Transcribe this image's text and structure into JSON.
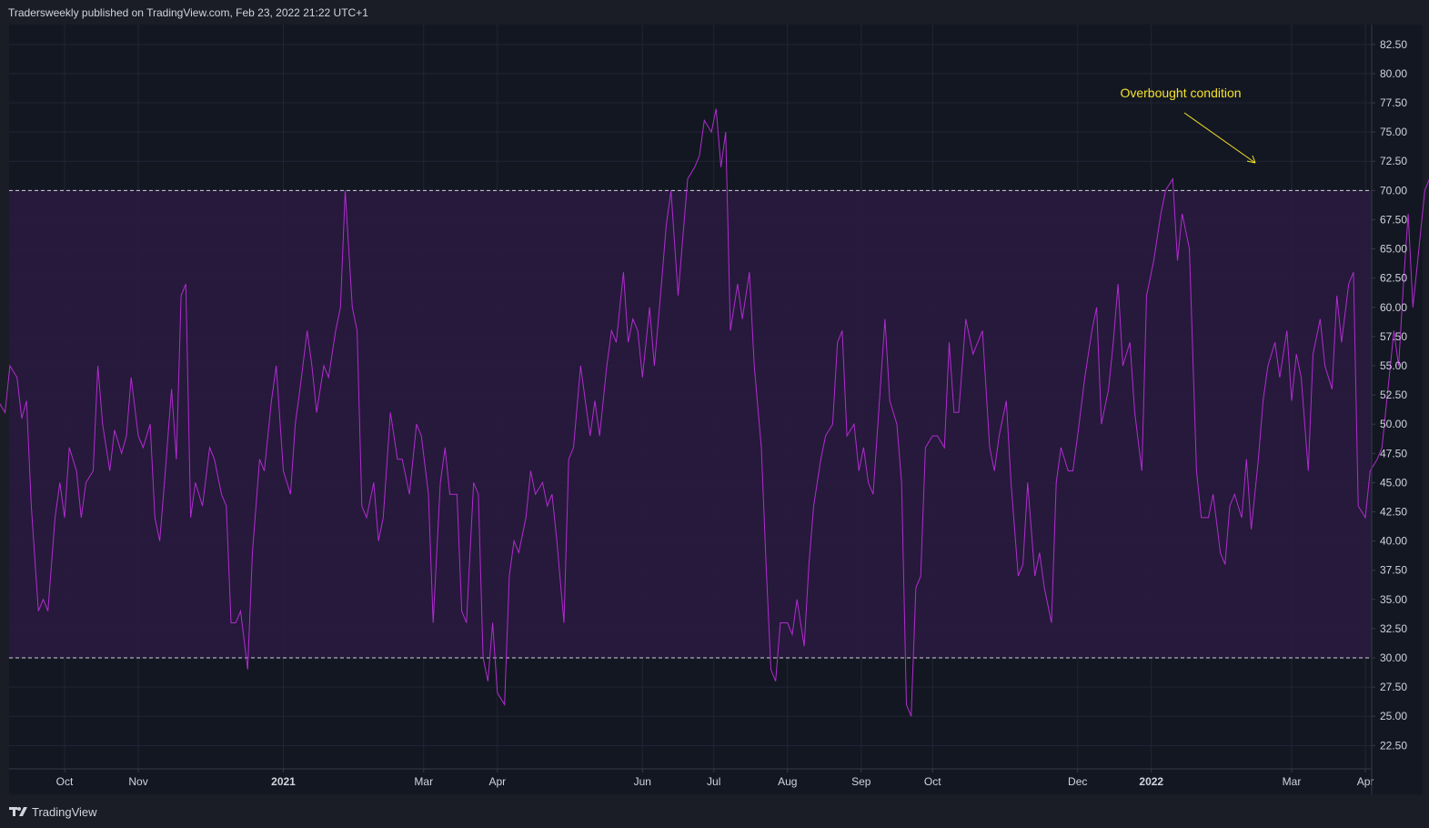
{
  "header": {
    "published_text": "Tradersweekly published on TradingView.com, Feb 23, 2022 21:22 UTC+1"
  },
  "footer": {
    "brand": "TradingView"
  },
  "colors": {
    "background": "#131722",
    "band_fill": "#2a1a3f",
    "line": "#b22bd1",
    "threshold_line": "#d1d4dc",
    "annotation": "#f4e22b",
    "axis_text": "#d1d4dc",
    "grid": "#222634"
  },
  "chart_data": {
    "type": "line",
    "ylim": [
      20.5,
      84.2
    ],
    "y_ticks": [
      "82.50",
      "80.00",
      "77.50",
      "75.00",
      "72.50",
      "70.00",
      "67.50",
      "65.00",
      "62.50",
      "60.00",
      "57.50",
      "55.00",
      "52.50",
      "50.00",
      "47.50",
      "45.00",
      "42.50",
      "40.00",
      "37.50",
      "35.00",
      "32.50",
      "30.00",
      "27.50",
      "25.00",
      "22.50"
    ],
    "x_range": [
      "2020-09-01",
      "2022-04-03"
    ],
    "x_ticks": [
      {
        "label": "Oct",
        "date": "2020-10-01",
        "bold": false
      },
      {
        "label": "Nov",
        "date": "2020-11-01",
        "bold": false
      },
      {
        "label": "2021",
        "date": "2021-01-01",
        "bold": true
      },
      {
        "label": "Mar",
        "date": "2021-03-01",
        "bold": false
      },
      {
        "label": "Apr",
        "date": "2021-04-01",
        "bold": false
      },
      {
        "label": "Jun",
        "date": "2021-06-01",
        "bold": false
      },
      {
        "label": "Jul",
        "date": "2021-07-01",
        "bold": false
      },
      {
        "label": "Aug",
        "date": "2021-08-01",
        "bold": false
      },
      {
        "label": "Sep",
        "date": "2021-09-01",
        "bold": false
      },
      {
        "label": "Oct",
        "date": "2021-10-01",
        "bold": false
      },
      {
        "label": "Dec",
        "date": "2021-12-01",
        "bold": false
      },
      {
        "label": "2022",
        "date": "2022-01-01",
        "bold": true
      },
      {
        "label": "Mar",
        "date": "2022-03-01",
        "bold": false
      },
      {
        "label": "Apr",
        "date": "2022-04-01",
        "bold": false
      }
    ],
    "upper_band": 70,
    "lower_band": 30,
    "series": [
      {
        "points": [
          [
            "2020-09-01",
            49.5
          ],
          [
            "2020-09-03",
            52
          ],
          [
            "2020-09-06",
            51
          ],
          [
            "2020-09-08",
            55
          ],
          [
            "2020-09-11",
            54
          ],
          [
            "2020-09-13",
            50.5
          ],
          [
            "2020-09-15",
            52
          ],
          [
            "2020-09-17",
            43
          ],
          [
            "2020-09-20",
            34
          ],
          [
            "2020-09-22",
            35
          ],
          [
            "2020-09-24",
            34
          ],
          [
            "2020-09-27",
            42
          ],
          [
            "2020-09-29",
            45
          ],
          [
            "2020-10-01",
            42
          ],
          [
            "2020-10-03",
            48
          ],
          [
            "2020-10-06",
            46
          ],
          [
            "2020-10-08",
            42
          ],
          [
            "2020-10-10",
            45
          ],
          [
            "2020-10-13",
            46
          ],
          [
            "2020-10-15",
            55
          ],
          [
            "2020-10-17",
            50
          ],
          [
            "2020-10-20",
            46
          ],
          [
            "2020-10-22",
            49.5
          ],
          [
            "2020-10-25",
            47.5
          ],
          [
            "2020-10-27",
            49
          ],
          [
            "2020-10-29",
            54
          ],
          [
            "2020-11-01",
            49
          ],
          [
            "2020-11-03",
            48
          ],
          [
            "2020-11-06",
            50
          ],
          [
            "2020-11-08",
            42
          ],
          [
            "2020-11-10",
            40
          ],
          [
            "2020-11-12",
            45
          ],
          [
            "2020-11-15",
            53
          ],
          [
            "2020-11-17",
            47
          ],
          [
            "2020-11-19",
            61
          ],
          [
            "2020-11-21",
            62
          ],
          [
            "2020-11-23",
            42
          ],
          [
            "2020-11-25",
            45
          ],
          [
            "2020-11-28",
            43
          ],
          [
            "2020-12-01",
            48
          ],
          [
            "2020-12-03",
            47
          ],
          [
            "2020-12-06",
            44
          ],
          [
            "2020-12-08",
            43
          ],
          [
            "2020-12-10",
            33
          ],
          [
            "2020-12-12",
            33
          ],
          [
            "2020-12-14",
            34
          ],
          [
            "2020-12-17",
            29
          ],
          [
            "2020-12-19",
            39
          ],
          [
            "2020-12-22",
            47
          ],
          [
            "2020-12-24",
            46
          ],
          [
            "2020-12-27",
            52
          ],
          [
            "2020-12-29",
            55
          ],
          [
            "2021-01-01",
            46
          ],
          [
            "2021-01-04",
            44
          ],
          [
            "2021-01-06",
            50
          ],
          [
            "2021-01-08",
            53
          ],
          [
            "2021-01-11",
            58
          ],
          [
            "2021-01-13",
            55
          ],
          [
            "2021-01-15",
            51
          ],
          [
            "2021-01-18",
            55
          ],
          [
            "2021-01-20",
            54
          ],
          [
            "2021-01-23",
            58
          ],
          [
            "2021-01-25",
            60
          ],
          [
            "2021-01-27",
            70
          ],
          [
            "2021-01-30",
            60
          ],
          [
            "2021-02-01",
            58
          ],
          [
            "2021-02-03",
            43
          ],
          [
            "2021-02-05",
            42
          ],
          [
            "2021-02-08",
            45
          ],
          [
            "2021-02-10",
            40
          ],
          [
            "2021-02-12",
            42
          ],
          [
            "2021-02-15",
            51
          ],
          [
            "2021-02-18",
            47
          ],
          [
            "2021-02-20",
            47
          ],
          [
            "2021-02-23",
            44
          ],
          [
            "2021-02-26",
            50
          ],
          [
            "2021-02-28",
            49
          ],
          [
            "2021-03-03",
            44
          ],
          [
            "2021-03-05",
            33
          ],
          [
            "2021-03-08",
            45
          ],
          [
            "2021-03-10",
            48
          ],
          [
            "2021-03-12",
            44
          ],
          [
            "2021-03-15",
            44
          ],
          [
            "2021-03-17",
            34
          ],
          [
            "2021-03-19",
            33
          ],
          [
            "2021-03-22",
            45
          ],
          [
            "2021-03-24",
            44
          ],
          [
            "2021-03-26",
            30
          ],
          [
            "2021-03-28",
            28
          ],
          [
            "2021-03-30",
            33
          ],
          [
            "2021-04-01",
            27
          ],
          [
            "2021-04-04",
            26
          ],
          [
            "2021-04-06",
            37
          ],
          [
            "2021-04-08",
            40
          ],
          [
            "2021-04-10",
            39
          ],
          [
            "2021-04-13",
            42
          ],
          [
            "2021-04-15",
            46
          ],
          [
            "2021-04-17",
            44
          ],
          [
            "2021-04-20",
            45
          ],
          [
            "2021-04-22",
            43
          ],
          [
            "2021-04-24",
            44
          ],
          [
            "2021-04-26",
            40
          ],
          [
            "2021-04-29",
            33
          ],
          [
            "2021-05-01",
            47
          ],
          [
            "2021-05-03",
            48
          ],
          [
            "2021-05-06",
            55
          ],
          [
            "2021-05-08",
            52
          ],
          [
            "2021-05-10",
            49
          ],
          [
            "2021-05-12",
            52
          ],
          [
            "2021-05-14",
            49
          ],
          [
            "2021-05-17",
            55
          ],
          [
            "2021-05-19",
            58
          ],
          [
            "2021-05-21",
            57
          ],
          [
            "2021-05-24",
            63
          ],
          [
            "2021-05-26",
            57
          ],
          [
            "2021-05-28",
            59
          ],
          [
            "2021-05-30",
            58
          ],
          [
            "2021-06-01",
            54
          ],
          [
            "2021-06-04",
            60
          ],
          [
            "2021-06-06",
            55
          ],
          [
            "2021-06-09",
            62
          ],
          [
            "2021-06-11",
            67
          ],
          [
            "2021-06-13",
            70
          ],
          [
            "2021-06-16",
            61
          ],
          [
            "2021-06-18",
            66
          ],
          [
            "2021-06-20",
            71
          ],
          [
            "2021-06-23",
            72
          ],
          [
            "2021-06-25",
            73
          ],
          [
            "2021-06-27",
            76
          ],
          [
            "2021-06-30",
            75
          ],
          [
            "2021-07-02",
            77
          ],
          [
            "2021-07-04",
            72
          ],
          [
            "2021-07-06",
            75
          ],
          [
            "2021-07-08",
            58
          ],
          [
            "2021-07-11",
            62
          ],
          [
            "2021-07-13",
            59
          ],
          [
            "2021-07-16",
            63
          ],
          [
            "2021-07-18",
            55
          ],
          [
            "2021-07-21",
            48
          ],
          [
            "2021-07-23",
            38
          ],
          [
            "2021-07-25",
            29
          ],
          [
            "2021-07-27",
            28
          ],
          [
            "2021-07-29",
            33
          ],
          [
            "2021-08-01",
            33
          ],
          [
            "2021-08-03",
            32
          ],
          [
            "2021-08-05",
            35
          ],
          [
            "2021-08-08",
            31
          ],
          [
            "2021-08-10",
            38
          ],
          [
            "2021-08-12",
            43
          ],
          [
            "2021-08-15",
            47
          ],
          [
            "2021-08-17",
            49
          ],
          [
            "2021-08-20",
            50
          ],
          [
            "2021-08-22",
            57
          ],
          [
            "2021-08-24",
            58
          ],
          [
            "2021-08-26",
            49
          ],
          [
            "2021-08-29",
            50
          ],
          [
            "2021-08-31",
            46
          ],
          [
            "2021-09-02",
            48
          ],
          [
            "2021-09-04",
            45
          ],
          [
            "2021-09-06",
            44
          ],
          [
            "2021-09-09",
            53
          ],
          [
            "2021-09-11",
            59
          ],
          [
            "2021-09-13",
            52
          ],
          [
            "2021-09-16",
            50
          ],
          [
            "2021-09-18",
            45
          ],
          [
            "2021-09-20",
            26
          ],
          [
            "2021-09-22",
            25
          ],
          [
            "2021-09-24",
            36
          ],
          [
            "2021-09-26",
            37
          ],
          [
            "2021-09-28",
            48
          ],
          [
            "2021-10-01",
            49
          ],
          [
            "2021-10-03",
            49
          ],
          [
            "2021-10-06",
            48
          ],
          [
            "2021-10-08",
            57
          ],
          [
            "2021-10-10",
            51
          ],
          [
            "2021-10-12",
            51
          ],
          [
            "2021-10-15",
            59
          ],
          [
            "2021-10-18",
            56
          ],
          [
            "2021-10-20",
            57
          ],
          [
            "2021-10-22",
            58
          ],
          [
            "2021-10-25",
            48
          ],
          [
            "2021-10-27",
            46
          ],
          [
            "2021-10-29",
            49
          ],
          [
            "2021-11-01",
            52
          ],
          [
            "2021-11-03",
            45
          ],
          [
            "2021-11-06",
            37
          ],
          [
            "2021-11-08",
            38
          ],
          [
            "2021-11-10",
            45
          ],
          [
            "2021-11-13",
            37
          ],
          [
            "2021-11-15",
            39
          ],
          [
            "2021-11-17",
            36
          ],
          [
            "2021-11-20",
            33
          ],
          [
            "2021-11-22",
            45
          ],
          [
            "2021-11-24",
            48
          ],
          [
            "2021-11-27",
            46
          ],
          [
            "2021-11-29",
            46
          ],
          [
            "2021-12-01",
            49
          ],
          [
            "2021-12-04",
            54
          ],
          [
            "2021-12-07",
            58
          ],
          [
            "2021-12-09",
            60
          ],
          [
            "2021-12-11",
            50
          ],
          [
            "2021-12-14",
            53
          ],
          [
            "2021-12-16",
            57
          ],
          [
            "2021-12-18",
            62
          ],
          [
            "2021-12-20",
            55
          ],
          [
            "2021-12-23",
            57
          ],
          [
            "2021-12-25",
            51
          ],
          [
            "2021-12-28",
            46
          ],
          [
            "2021-12-30",
            61
          ],
          [
            "2022-01-02",
            64
          ],
          [
            "2022-01-05",
            68
          ],
          [
            "2022-01-07",
            70
          ],
          [
            "2022-01-10",
            71
          ],
          [
            "2022-01-12",
            64
          ],
          [
            "2022-01-14",
            68
          ],
          [
            "2022-01-17",
            65
          ],
          [
            "2022-01-20",
            46
          ],
          [
            "2022-01-22",
            42
          ],
          [
            "2022-01-25",
            42
          ],
          [
            "2022-01-27",
            44
          ],
          [
            "2022-01-30",
            39
          ],
          [
            "2022-02-01",
            38
          ],
          [
            "2022-02-03",
            43
          ],
          [
            "2022-02-05",
            44
          ],
          [
            "2022-02-08",
            42
          ],
          [
            "2022-02-10",
            47
          ],
          [
            "2022-02-12",
            41
          ],
          [
            "2022-02-15",
            47
          ],
          [
            "2022-02-17",
            52
          ],
          [
            "2022-02-19",
            55
          ],
          [
            "2022-02-22",
            57
          ],
          [
            "2022-02-24",
            54
          ],
          [
            "2022-02-27",
            58
          ],
          [
            "2022-03-01",
            52
          ],
          [
            "2022-03-03",
            56
          ],
          [
            "2022-03-05",
            54
          ],
          [
            "2022-03-08",
            46
          ],
          [
            "2022-03-10",
            56
          ],
          [
            "2022-03-13",
            59
          ],
          [
            "2022-03-15",
            55
          ],
          [
            "2022-03-18",
            53
          ],
          [
            "2022-03-20",
            61
          ],
          [
            "2022-03-22",
            57
          ],
          [
            "2022-03-25",
            62
          ],
          [
            "2022-03-27",
            63
          ],
          [
            "2022-03-29",
            43
          ],
          [
            "2022-04-01",
            42
          ],
          [
            "2022-04-03",
            46
          ],
          [
            "2022-04-06",
            47
          ],
          [
            "2022-04-08",
            48
          ],
          [
            "2022-04-11",
            54
          ],
          [
            "2022-04-13",
            58
          ],
          [
            "2022-04-15",
            55
          ],
          [
            "2022-04-17",
            62
          ],
          [
            "2022-04-19",
            68
          ],
          [
            "2022-04-21",
            60
          ],
          [
            "2022-04-23",
            64
          ],
          [
            "2022-04-26",
            70
          ],
          [
            "2022-04-28",
            71
          ],
          [
            "2022-04-30",
            68
          ],
          [
            "2022-05-02",
            70
          ]
        ]
      }
    ],
    "annotation": {
      "text": "Overbought condition"
    }
  }
}
